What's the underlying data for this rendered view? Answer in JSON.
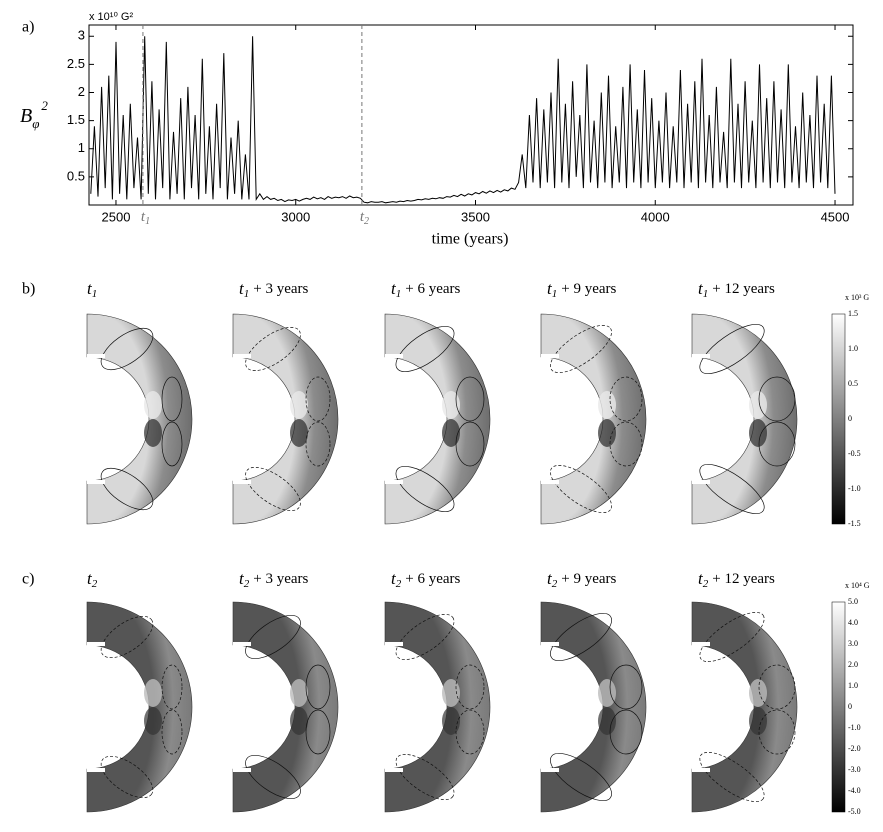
{
  "chart_data": {
    "type": "line",
    "panel_label": "a)",
    "y_label": {
      "base": "B",
      "sub": "φ",
      "sup": "2"
    },
    "unit_label": "x 10¹⁰ G²",
    "x_label": "time (years)",
    "color": "#000000",
    "xlim": [
      2425,
      4550
    ],
    "ylim": [
      0,
      3.2
    ],
    "xticks": [
      2500,
      3000,
      3500,
      4000,
      4500
    ],
    "yticks": [
      0.5,
      1,
      1.5,
      2,
      2.5,
      3
    ],
    "annotations": [
      {
        "x": 2575,
        "sym": "t",
        "sub": "1"
      },
      {
        "x": 3184,
        "sym": "t",
        "sub": "2"
      }
    ],
    "x": [
      2430,
      2440,
      2450,
      2460,
      2470,
      2480,
      2490,
      2500,
      2510,
      2520,
      2530,
      2540,
      2550,
      2560,
      2570,
      2580,
      2590,
      2600,
      2610,
      2620,
      2630,
      2640,
      2650,
      2660,
      2670,
      2680,
      2690,
      2700,
      2710,
      2720,
      2730,
      2740,
      2750,
      2760,
      2770,
      2780,
      2790,
      2800,
      2810,
      2820,
      2830,
      2840,
      2850,
      2860,
      2870,
      2880,
      2890,
      2900,
      2910,
      2920,
      2930,
      2940,
      2950,
      2960,
      2970,
      2980,
      2990,
      3000,
      3010,
      3020,
      3030,
      3040,
      3050,
      3060,
      3070,
      3080,
      3090,
      3100,
      3110,
      3120,
      3130,
      3140,
      3150,
      3160,
      3170,
      3180,
      3190,
      3200,
      3210,
      3220,
      3230,
      3240,
      3250,
      3260,
      3270,
      3280,
      3290,
      3300,
      3310,
      3320,
      3330,
      3340,
      3350,
      3360,
      3370,
      3380,
      3390,
      3400,
      3410,
      3420,
      3430,
      3440,
      3450,
      3460,
      3470,
      3480,
      3490,
      3500,
      3510,
      3520,
      3530,
      3540,
      3550,
      3560,
      3570,
      3580,
      3590,
      3600,
      3610,
      3620,
      3630,
      3640,
      3650,
      3660,
      3670,
      3680,
      3690,
      3700,
      3710,
      3720,
      3730,
      3740,
      3750,
      3760,
      3770,
      3780,
      3790,
      3800,
      3810,
      3820,
      3830,
      3840,
      3850,
      3860,
      3870,
      3880,
      3890,
      3900,
      3910,
      3920,
      3930,
      3940,
      3950,
      3960,
      3970,
      3980,
      3990,
      4000,
      4010,
      4020,
      4030,
      4040,
      4050,
      4060,
      4070,
      4080,
      4090,
      4100,
      4110,
      4120,
      4130,
      4140,
      4150,
      4160,
      4170,
      4180,
      4190,
      4200,
      4210,
      4220,
      4230,
      4240,
      4250,
      4260,
      4270,
      4280,
      4290,
      4300,
      4310,
      4320,
      4330,
      4340,
      4350,
      4360,
      4370,
      4380,
      4390,
      4400,
      4410,
      4420,
      4430,
      4440,
      4450,
      4460,
      4470,
      4480,
      4490,
      4500
    ],
    "values": [
      0.2,
      1.4,
      0.15,
      2.1,
      0.3,
      2.3,
      0.1,
      2.9,
      0.2,
      1.6,
      0.1,
      1.8,
      0.3,
      1.2,
      0.1,
      3.0,
      0.2,
      2.2,
      0.1,
      1.7,
      0.3,
      2.9,
      0.1,
      1.3,
      0.2,
      1.9,
      0.1,
      2.1,
      0.3,
      1.6,
      0.1,
      2.6,
      0.2,
      1.4,
      0.1,
      1.8,
      0.3,
      2.7,
      0.1,
      1.2,
      0.2,
      1.5,
      0.1,
      0.9,
      0.1,
      3.0,
      0.1,
      0.2,
      0.1,
      0.15,
      0.1,
      0.12,
      0.08,
      0.1,
      0.06,
      0.09,
      0.08,
      0.1,
      0.07,
      0.1,
      0.12,
      0.1,
      0.14,
      0.11,
      0.13,
      0.1,
      0.15,
      0.12,
      0.14,
      0.13,
      0.15,
      0.12,
      0.16,
      0.13,
      0.14,
      0.12,
      0.05,
      0.04,
      0.06,
      0.05,
      0.05,
      0.06,
      0.04,
      0.05,
      0.06,
      0.05,
      0.07,
      0.06,
      0.08,
      0.07,
      0.08,
      0.1,
      0.09,
      0.11,
      0.1,
      0.12,
      0.11,
      0.13,
      0.12,
      0.15,
      0.14,
      0.17,
      0.15,
      0.19,
      0.16,
      0.2,
      0.18,
      0.22,
      0.2,
      0.24,
      0.21,
      0.25,
      0.22,
      0.26,
      0.23,
      0.27,
      0.25,
      0.3,
      0.28,
      0.4,
      0.9,
      0.3,
      1.6,
      0.4,
      1.9,
      0.3,
      1.7,
      0.4,
      2.0,
      0.3,
      2.6,
      0.4,
      1.8,
      0.3,
      2.2,
      0.5,
      1.6,
      0.3,
      2.5,
      0.4,
      1.5,
      0.3,
      2.0,
      0.4,
      2.3,
      0.3,
      1.4,
      0.4,
      2.1,
      0.3,
      2.5,
      0.4,
      1.7,
      0.3,
      2.4,
      0.4,
      1.9,
      0.3,
      1.5,
      0.4,
      2.0,
      0.3,
      1.4,
      0.4,
      2.4,
      0.3,
      1.8,
      0.4,
      2.2,
      0.3,
      2.6,
      0.4,
      1.6,
      0.3,
      2.1,
      0.4,
      1.3,
      0.3,
      2.6,
      0.4,
      1.8,
      0.3,
      2.2,
      0.4,
      1.5,
      0.3,
      2.5,
      0.4,
      1.9,
      0.3,
      2.2,
      0.4,
      1.7,
      0.3,
      2.5,
      0.4,
      1.4,
      0.3,
      2.0,
      0.4,
      1.6,
      0.3,
      2.3,
      0.4,
      1.8,
      0.3,
      2.3,
      0.2
    ]
  },
  "panels": [
    {
      "label": "b)",
      "colorbar": {
        "unit": "x 10³ G",
        "ticks": [
          "1.5",
          "1.0",
          "0.5",
          "0",
          "-0.5",
          "-1.0",
          "-1.5"
        ]
      },
      "frames": [
        {
          "sym": "t",
          "sub": "1"
        },
        {
          "sym": "t",
          "sub": "1",
          "rest": "+ 3 years"
        },
        {
          "sym": "t",
          "sub": "1",
          "rest": "+ 6 years"
        },
        {
          "sym": "t",
          "sub": "1",
          "rest": "+ 9 years"
        },
        {
          "sym": "t",
          "sub": "1",
          "rest": "+ 12 years"
        }
      ]
    },
    {
      "label": "c)",
      "colorbar": {
        "unit": "x 10⁴ G",
        "ticks": [
          "5.0",
          "4.0",
          "3.0",
          "2.0",
          "1.0",
          "0",
          "-1.0",
          "-2.0",
          "-3.0",
          "-4.0",
          "-5.0"
        ]
      },
      "frames": [
        {
          "sym": "t",
          "sub": "2"
        },
        {
          "sym": "t",
          "sub": "2",
          "rest": "+ 3 years"
        },
        {
          "sym": "t",
          "sub": "2",
          "rest": "+ 6 years"
        },
        {
          "sym": "t",
          "sub": "2",
          "rest": "+ 9 years"
        },
        {
          "sym": "t",
          "sub": "2",
          "rest": "+ 12 years"
        }
      ]
    }
  ]
}
